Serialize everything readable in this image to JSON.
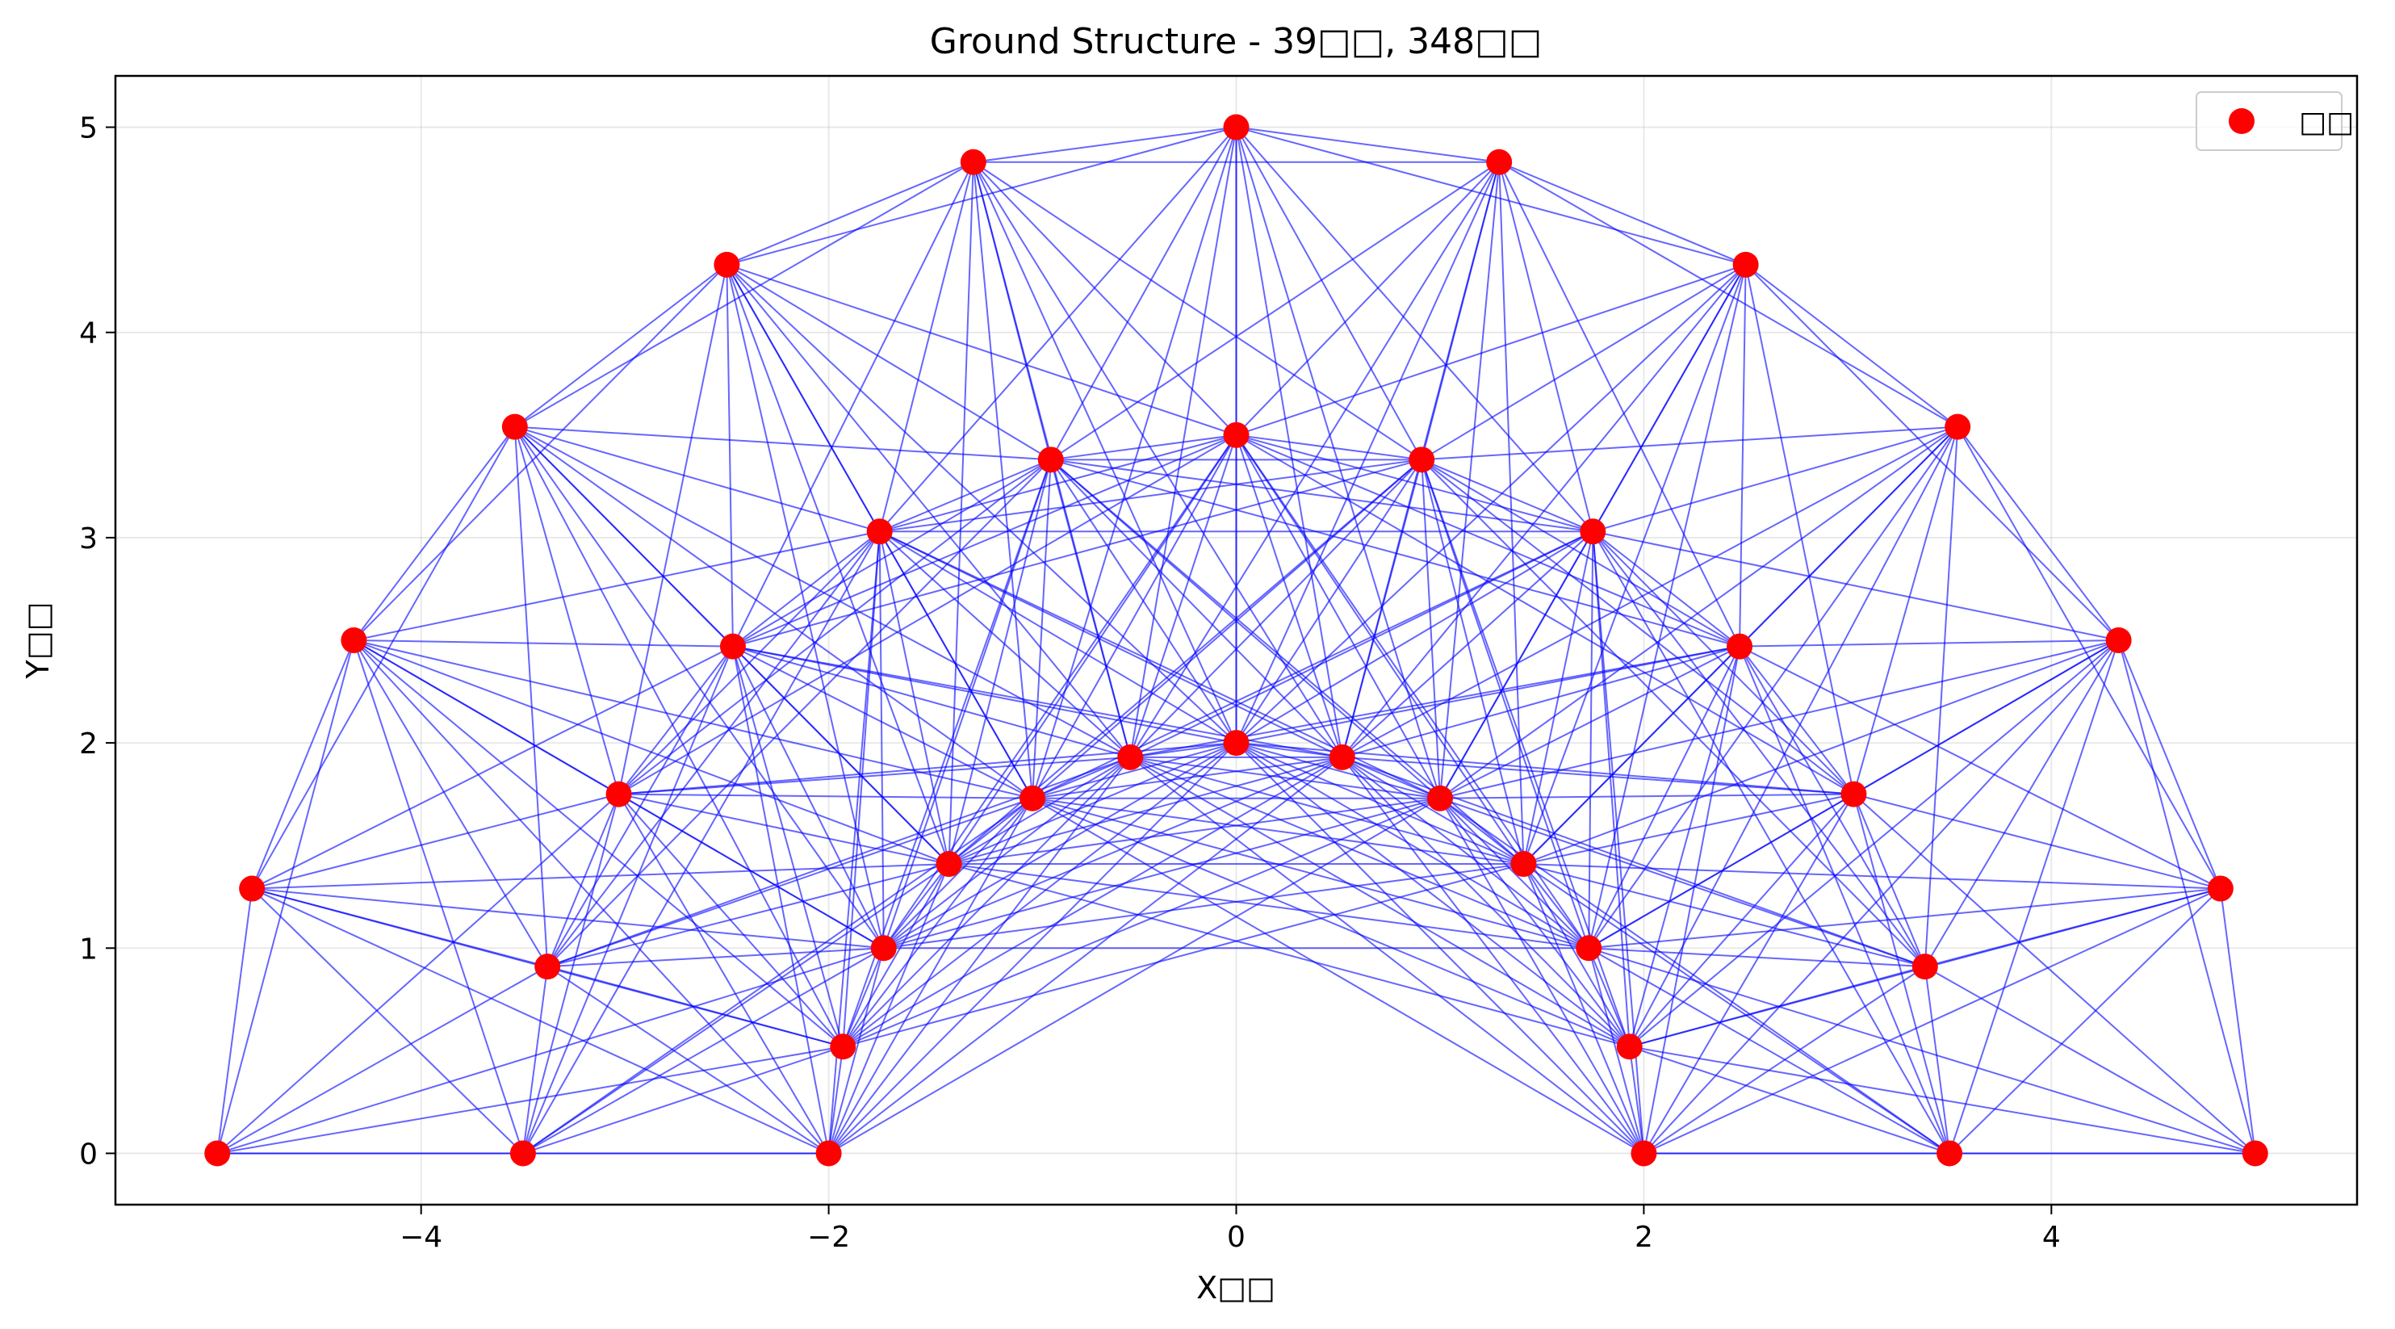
{
  "chart_data": {
    "type": "scatter",
    "title": "Ground Structure - 39□□, 348□□",
    "xlabel": "X□□",
    "ylabel": "Y□□",
    "xlim": [
      -5.5,
      5.5
    ],
    "ylim": [
      -0.25,
      5.25
    ],
    "xticks": [
      -4,
      -2,
      0,
      2,
      4
    ],
    "yticks": [
      0,
      1,
      2,
      3,
      4,
      5
    ],
    "xtick_labels": [
      "−4",
      "−2",
      "0",
      "2",
      "4"
    ],
    "ytick_labels": [
      "0",
      "1",
      "2",
      "3",
      "4",
      "5"
    ],
    "grid": true,
    "legend": {
      "position": "top-right",
      "entries": [
        {
          "label": "□□",
          "color": "#ff0000",
          "marker": "circle"
        }
      ]
    },
    "node_color": "#ff0000",
    "member_color": "#0000ff",
    "nodes": [
      [
        -5.0,
        0.0
      ],
      [
        -4.83,
        1.29
      ],
      [
        -4.33,
        2.5
      ],
      [
        -3.54,
        3.54
      ],
      [
        -2.5,
        4.33
      ],
      [
        -1.29,
        4.83
      ],
      [
        0.0,
        5.0
      ],
      [
        1.29,
        4.83
      ],
      [
        2.5,
        4.33
      ],
      [
        3.54,
        3.54
      ],
      [
        4.33,
        2.5
      ],
      [
        4.83,
        1.29
      ],
      [
        5.0,
        0.0
      ],
      [
        -3.5,
        0.0
      ],
      [
        -3.38,
        0.91
      ],
      [
        -3.03,
        1.75
      ],
      [
        -2.47,
        2.47
      ],
      [
        -1.75,
        3.03
      ],
      [
        -0.91,
        3.38
      ],
      [
        0.0,
        3.5
      ],
      [
        0.91,
        3.38
      ],
      [
        1.75,
        3.03
      ],
      [
        2.47,
        2.47
      ],
      [
        3.03,
        1.75
      ],
      [
        3.38,
        0.91
      ],
      [
        3.5,
        0.0
      ],
      [
        -2.0,
        0.0
      ],
      [
        -1.93,
        0.52
      ],
      [
        -1.73,
        1.0
      ],
      [
        -1.41,
        1.41
      ],
      [
        -1.0,
        1.73
      ],
      [
        -0.52,
        1.93
      ],
      [
        0.0,
        2.0
      ],
      [
        0.52,
        1.93
      ],
      [
        1.0,
        1.73
      ],
      [
        1.41,
        1.41
      ],
      [
        1.73,
        1.0
      ],
      [
        1.93,
        0.52
      ],
      [
        2.0,
        0.0
      ]
    ]
  }
}
